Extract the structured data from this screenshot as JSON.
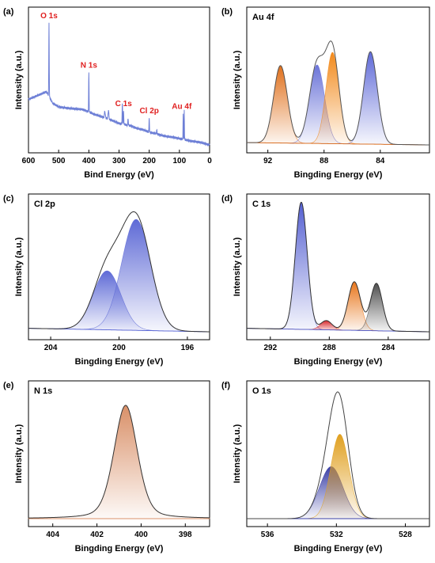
{
  "figure": {
    "panels": [
      {
        "letter": "(a)",
        "title": "",
        "xlabel": "Bind Energy (eV)",
        "ylabel": "Intensity (a.u.)",
        "xlim": [
          600,
          0
        ],
        "xticks": [
          "600",
          "500",
          "400",
          "300",
          "200",
          "100",
          "0"
        ],
        "tick_values": [
          600,
          500,
          400,
          300,
          200,
          100,
          0
        ]
      },
      {
        "letter": "(b)",
        "title": "Au 4f",
        "xlabel": "Bingding Energy (eV)",
        "ylabel": "Intensity (a.u.)",
        "xlim": [
          93.5,
          80.5
        ],
        "xticks": [
          "92",
          "88",
          "84"
        ],
        "tick_values": [
          92,
          88,
          84
        ]
      },
      {
        "letter": "(c)",
        "title": "Cl 2p",
        "xlabel": "Bingding Energy (eV)",
        "ylabel": "Intensity (a.u.)",
        "xlim": [
          205.3,
          194.7
        ],
        "xticks": [
          "204",
          "200",
          "196"
        ],
        "tick_values": [
          204,
          200,
          196
        ]
      },
      {
        "letter": "(d)",
        "title": "C 1s",
        "xlabel": "Bingding Energy (eV)",
        "ylabel": "Intensity (a.u.)",
        "xlim": [
          293.6,
          281.2
        ],
        "xticks": [
          "292",
          "288",
          "284"
        ],
        "tick_values": [
          292,
          288,
          284
        ]
      },
      {
        "letter": "(e)",
        "title": "N 1s",
        "xlabel": "Bingding Energy (eV)",
        "ylabel": "Intensity (a.u.)",
        "xlim": [
          405.1,
          396.9
        ],
        "xticks": [
          "404",
          "402",
          "400",
          "398"
        ],
        "tick_values": [
          404,
          402,
          400,
          398
        ]
      },
      {
        "letter": "(f)",
        "title": "O 1s",
        "xlabel": "Bingding Energy (eV)",
        "ylabel": "Intensity (a.u.)",
        "xlim": [
          537.2,
          526.6
        ],
        "xticks": [
          "536",
          "532",
          "528"
        ],
        "tick_values": [
          536,
          532,
          528
        ]
      }
    ]
  },
  "chart_data": [
    {
      "type": "line",
      "panel": "(a)",
      "xlabel": "Bind Energy (eV)",
      "ylabel": "Intensity (a.u.)",
      "xlim": [
        600,
        0
      ],
      "ylim": [
        0,
        1
      ],
      "color": "#6d7fd6",
      "annotations": [
        {
          "label": "O 1s",
          "x": 532,
          "color": "#e02020"
        },
        {
          "label": "N 1s",
          "x": 400,
          "color": "#e02020"
        },
        {
          "label": "C 1s",
          "x": 285,
          "color": "#e02020"
        },
        {
          "label": "Cl 2p",
          "x": 200,
          "color": "#e02020"
        },
        {
          "label": "Au 4f",
          "x": 87,
          "color": "#e02020"
        }
      ],
      "baseline": [
        [
          600,
          0.36
        ],
        [
          560,
          0.4
        ],
        [
          540,
          0.42
        ],
        [
          520,
          0.33
        ],
        [
          500,
          0.3
        ],
        [
          470,
          0.29
        ],
        [
          420,
          0.28
        ],
        [
          400,
          0.26
        ],
        [
          380,
          0.24
        ],
        [
          340,
          0.21
        ],
        [
          300,
          0.17
        ],
        [
          260,
          0.15
        ],
        [
          240,
          0.13
        ],
        [
          220,
          0.12
        ],
        [
          200,
          0.1
        ],
        [
          180,
          0.09
        ],
        [
          150,
          0.07
        ],
        [
          120,
          0.06
        ],
        [
          100,
          0.05
        ],
        [
          80,
          0.04
        ],
        [
          60,
          0.03
        ],
        [
          30,
          0.02
        ],
        [
          0,
          0.0
        ]
      ],
      "peaks": [
        {
          "x": 532,
          "height": 0.58,
          "width": 1.6
        },
        {
          "x": 400,
          "height": 0.31,
          "width": 1.6
        },
        {
          "x": 347,
          "height": 0.05,
          "width": 3
        },
        {
          "x": 335,
          "height": 0.07,
          "width": 3
        },
        {
          "x": 289,
          "height": 0.16,
          "width": 1.8
        },
        {
          "x": 285,
          "height": 0.1,
          "width": 1.8
        },
        {
          "x": 270,
          "height": 0.05,
          "width": 2
        },
        {
          "x": 200,
          "height": 0.11,
          "width": 1.8
        },
        {
          "x": 175,
          "height": 0.03,
          "width": 2
        },
        {
          "x": 87.5,
          "height": 0.21,
          "width": 1.2
        },
        {
          "x": 84,
          "height": 0.24,
          "width": 1.2
        }
      ]
    },
    {
      "type": "area",
      "panel": "(b)",
      "title": "Au 4f",
      "xlabel": "Bingding Energy (eV)",
      "ylabel": "Intensity (a.u.)",
      "xlim": [
        93.5,
        80.5
      ],
      "ylim": [
        0,
        1
      ],
      "background": [
        [
          93.5,
          0.02
        ],
        [
          80.5,
          0.0
        ]
      ],
      "envelope_color": "#555555",
      "series": [
        {
          "center": 91.1,
          "height": 0.67,
          "fwhm": 1.15,
          "color": "#e0701c"
        },
        {
          "center": 88.5,
          "height": 0.68,
          "fwhm": 1.25,
          "color": "#6b74d8"
        },
        {
          "center": 87.4,
          "height": 0.79,
          "fwhm": 1.1,
          "color": "#f28a1c"
        },
        {
          "center": 84.7,
          "height": 0.8,
          "fwhm": 1.15,
          "color": "#5f6ad8"
        }
      ]
    },
    {
      "type": "area",
      "panel": "(c)",
      "title": "Cl 2p",
      "xlabel": "Bingding Energy (eV)",
      "ylabel": "Intensity (a.u.)",
      "xlim": [
        205.3,
        194.7
      ],
      "ylim": [
        0,
        1
      ],
      "background": [
        [
          205.3,
          0.03
        ],
        [
          194.7,
          0.0
        ]
      ],
      "envelope_color": "#333333",
      "series": [
        {
          "center": 200.7,
          "height": 0.51,
          "fwhm": 1.9,
          "color": "#5e6ad6"
        },
        {
          "center": 199.0,
          "height": 0.96,
          "fwhm": 2.0,
          "color": "#5e6ad6"
        }
      ]
    },
    {
      "type": "area",
      "panel": "(d)",
      "title": "C 1s",
      "xlabel": "Bingding Energy (eV)",
      "ylabel": "Intensity (a.u.)",
      "xlim": [
        293.6,
        281.2
      ],
      "ylim": [
        0,
        1
      ],
      "background": [
        [
          293.6,
          0.03
        ],
        [
          281.2,
          0.0
        ]
      ],
      "envelope_color": "#333333",
      "series": [
        {
          "center": 289.9,
          "height": 1.1,
          "fwhm": 0.95,
          "color": "#5560d2"
        },
        {
          "center": 288.2,
          "height": 0.08,
          "fwhm": 0.9,
          "color": "#d8282c"
        },
        {
          "center": 286.3,
          "height": 0.42,
          "fwhm": 1.0,
          "color": "#e8761c"
        },
        {
          "center": 284.8,
          "height": 0.41,
          "fwhm": 0.95,
          "color": "#505050"
        }
      ]
    },
    {
      "type": "area",
      "panel": "(e)",
      "title": "N 1s",
      "xlabel": "Bingding Energy (eV)",
      "ylabel": "Intensity (a.u.)",
      "xlim": [
        405.1,
        396.9
      ],
      "ylim": [
        0,
        1
      ],
      "background": [
        [
          405.1,
          0.0
        ],
        [
          396.9,
          0.0
        ]
      ],
      "envelope_color": "#333333",
      "series": [
        {
          "center": 400.7,
          "height": 0.98,
          "fwhm": 1.25,
          "color": "#d99068",
          "shape": "lorentzian"
        }
      ]
    },
    {
      "type": "area",
      "panel": "(f)",
      "title": "O 1s",
      "xlabel": "Bingding Energy (eV)",
      "ylabel": "Intensity (a.u.)",
      "xlim": [
        537.2,
        526.6
      ],
      "ylim": [
        0,
        1
      ],
      "background": [
        [
          537.2,
          0.0
        ],
        [
          526.6,
          0.0
        ]
      ],
      "envelope_color": "#444444",
      "series": [
        {
          "center": 532.3,
          "height": 0.45,
          "fwhm": 1.6,
          "color": "#3a3fa6"
        },
        {
          "center": 531.8,
          "height": 0.73,
          "fwhm": 1.25,
          "color": "#e0a020"
        }
      ]
    }
  ]
}
